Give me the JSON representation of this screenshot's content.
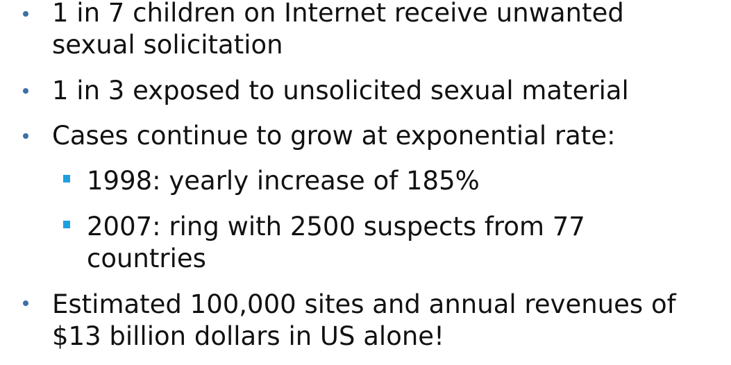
{
  "bullets": [
    {
      "lines": [
        "1 in 7 children on Internet receive unwanted",
        "sexual solicitation"
      ]
    },
    {
      "lines": [
        "1 in 3 exposed to unsolicited sexual material"
      ]
    },
    {
      "lines": [
        "Cases continue to grow at exponential rate:"
      ],
      "sub": [
        {
          "lines": [
            "1998: yearly increase of 185%"
          ]
        },
        {
          "lines": [
            "2007: ring with 2500 suspects from 77",
            "countries"
          ]
        }
      ]
    },
    {
      "lines": [
        "Estimated 100,000 sites and annual revenues of",
        "$13 billion dollars in US alone!"
      ]
    }
  ],
  "colors": {
    "bullet_dot": "#3d6fa8",
    "bullet_square": "#1f9fe0",
    "text": "#111111",
    "background": "#ffffff"
  }
}
